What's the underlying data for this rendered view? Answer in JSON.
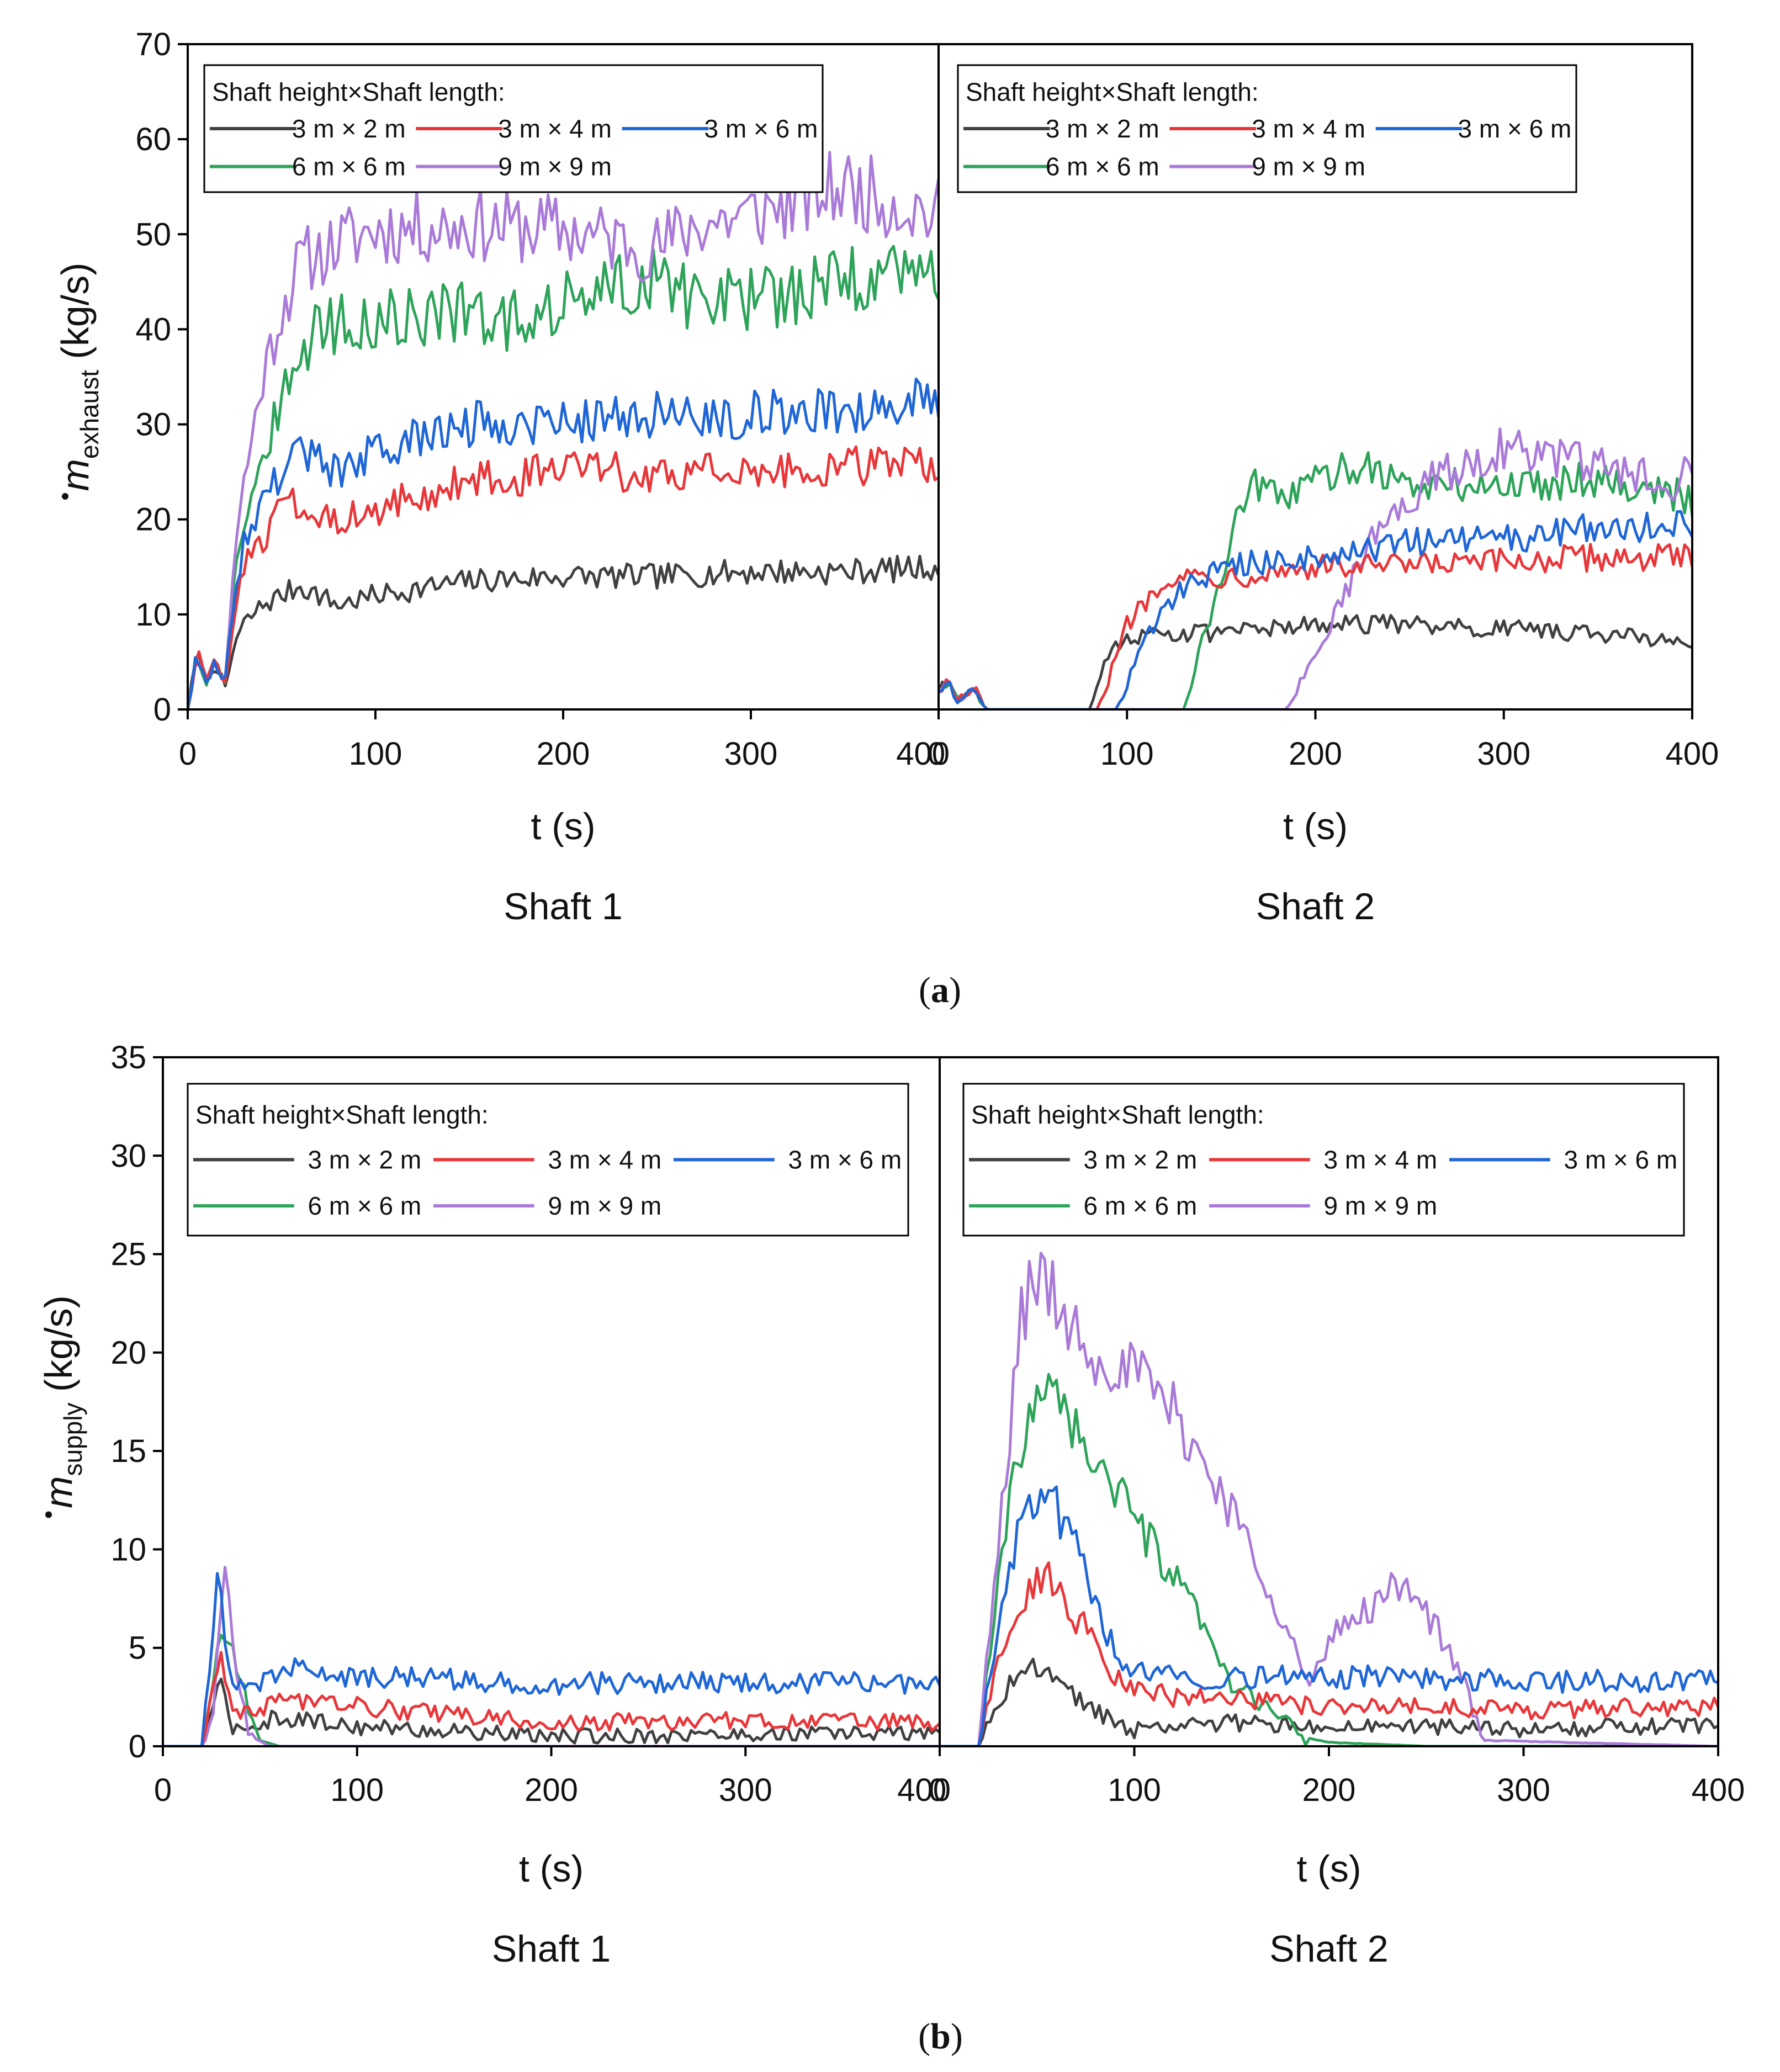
{
  "figure": {
    "colors": {
      "3x2": "#404040",
      "3x4": "#e8373a",
      "3x6": "#1f66d6",
      "6x6": "#2ea35a",
      "9x9": "#a97ad8"
    },
    "legend_title": "Shaft height×Shaft length:",
    "series_names": [
      "3 m × 2 m",
      "3 m × 4 m",
      "3 m × 6 m",
      "6 m × 6 m",
      "9 m × 9 m"
    ]
  },
  "chart_data": [
    {
      "type": "line",
      "caption": {
        "open": "(",
        "letter": "a",
        "close": ")"
      },
      "ylabel": {
        "main": "m",
        "sub": "exhaust",
        "unit": " (kg/s)"
      },
      "ylim": [
        0,
        70
      ],
      "yticks": [
        0,
        10,
        20,
        30,
        40,
        50,
        60,
        70
      ],
      "panels": [
        {
          "subtitle": "Shaft 1",
          "xlabel": "t (s)",
          "xlim": [
            0,
            400
          ],
          "xticks": [
            0,
            100,
            200,
            300,
            400
          ],
          "series": [
            {
              "name": "3 m × 2 m",
              "x": [
                0,
                5,
                10,
                15,
                20,
                25,
                30,
                40,
                50,
                60,
                70,
                80,
                100,
                150,
                200,
                250,
                300,
                350,
                400
              ],
              "y": [
                0,
                6,
                3,
                5,
                2,
                7,
                9,
                11,
                12,
                13,
                12,
                11,
                12,
                13.5,
                14,
                14,
                14.5,
                14.5,
                15
              ]
            },
            {
              "name": "3 m × 4 m",
              "x": [
                0,
                5,
                10,
                15,
                20,
                25,
                30,
                40,
                50,
                60,
                70,
                80,
                100,
                150,
                200,
                250,
                300,
                350,
                400
              ],
              "y": [
                0,
                6,
                3,
                5,
                3,
                10,
                15,
                18,
                21,
                22,
                21,
                20,
                21,
                24,
                25,
                25,
                25,
                25.5,
                26
              ]
            },
            {
              "name": "3 m × 6 m",
              "x": [
                0,
                5,
                10,
                15,
                20,
                25,
                30,
                40,
                50,
                60,
                70,
                80,
                100,
                150,
                200,
                250,
                300,
                350,
                400
              ],
              "y": [
                0,
                6,
                3,
                5,
                3,
                12,
                18,
                22,
                25,
                28,
                26,
                25,
                27,
                30,
                30.5,
                31,
                31,
                31.5,
                33
              ]
            },
            {
              "name": "6 m × 6 m",
              "x": [
                0,
                5,
                10,
                15,
                20,
                25,
                30,
                40,
                50,
                60,
                70,
                80,
                100,
                150,
                160,
                200,
                250,
                270,
                300,
                350,
                400
              ],
              "y": [
                0,
                6,
                3,
                5,
                3,
                15,
                20,
                27,
                32,
                38,
                40,
                40.5,
                41,
                42,
                40,
                43,
                45.5,
                43,
                43,
                45,
                46.5
              ]
            },
            {
              "name": "9 m × 9 m",
              "x": [
                0,
                5,
                10,
                15,
                20,
                25,
                30,
                40,
                50,
                60,
                70,
                80,
                100,
                150,
                200,
                250,
                270,
                300,
                350,
                400
              ],
              "y": [
                0,
                6,
                3,
                5,
                3,
                17,
                24,
                35,
                42,
                47,
                48,
                49,
                50.5,
                51,
                50.5,
                48.5,
                51,
                52,
                55,
                52
              ]
            }
          ]
        },
        {
          "subtitle": "Shaft 2",
          "xlabel": "t (s)",
          "xlim": [
            0,
            400
          ],
          "xticks": [
            0,
            100,
            200,
            300,
            400
          ],
          "series": [
            {
              "name": "3 m × 2 m",
              "x": [
                0,
                5,
                10,
                20,
                25,
                80,
                90,
                100,
                120,
                150,
                200,
                250,
                300,
                350,
                400
              ],
              "y": [
                2,
                3,
                1,
                2,
                0,
                0,
                6,
                7.5,
                8,
                8,
                9,
                9,
                8.5,
                8,
                7
              ]
            },
            {
              "name": "3 m × 4 m",
              "x": [
                0,
                5,
                10,
                20,
                25,
                85,
                100,
                120,
                150,
                200,
                250,
                300,
                350,
                400
              ],
              "y": [
                2,
                3,
                1,
                2,
                0,
                0,
                9,
                14,
                14,
                15,
                15,
                15.5,
                16,
                16
              ]
            },
            {
              "name": "3 m × 6 m",
              "x": [
                0,
                5,
                10,
                20,
                25,
                95,
                110,
                130,
                150,
                200,
                250,
                300,
                350,
                400
              ],
              "y": [
                2,
                3,
                1,
                2,
                0,
                0,
                8,
                13,
                15,
                16,
                17.5,
                18,
                19,
                19.5
              ]
            },
            {
              "name": "6 m × 6 m",
              "x": [
                0,
                5,
                10,
                20,
                25,
                130,
                150,
                165,
                180,
                200,
                225,
                250,
                300,
                350,
                400
              ],
              "y": [
                2,
                3,
                1,
                2,
                0,
                0,
                14,
                24,
                22,
                24,
                26,
                23.5,
                23.5,
                24.5,
                22
              ]
            },
            {
              "name": "9 m × 9 m",
              "x": [
                0,
                5,
                10,
                20,
                25,
                185,
                200,
                215,
                230,
                260,
                300,
                330,
                360,
                390,
                400
              ],
              "y": [
                2,
                3,
                1,
                2,
                0,
                0,
                6,
                12,
                18,
                24,
                27.5,
                26.5,
                25,
                24,
                27
              ]
            }
          ]
        }
      ]
    },
    {
      "type": "line",
      "caption": {
        "open": "(",
        "letter": "b",
        "close": ")"
      },
      "ylabel": {
        "main": "m",
        "sub": "supply",
        "unit": " (kg/s)"
      },
      "ylim": [
        0,
        35
      ],
      "yticks": [
        0,
        5,
        10,
        15,
        20,
        25,
        30,
        35
      ],
      "panels": [
        {
          "subtitle": "Shaft 1",
          "xlabel": "t (s)",
          "xlim": [
            0,
            400
          ],
          "xticks": [
            0,
            100,
            200,
            300,
            400
          ],
          "series": [
            {
              "name": "3 m × 2 m",
              "x": [
                0,
                20,
                25,
                30,
                35,
                45,
                60,
                100,
                200,
                300,
                400
              ],
              "y": [
                0,
                0,
                2,
                3,
                1,
                1,
                1.5,
                1,
                0.5,
                0.6,
                0.7
              ]
            },
            {
              "name": "3 m × 4 m",
              "x": [
                0,
                20,
                25,
                30,
                35,
                45,
                60,
                100,
                200,
                300,
                400
              ],
              "y": [
                0,
                0,
                3,
                5,
                2,
                1.5,
                2.5,
                2,
                1.2,
                1.3,
                1.2
              ]
            },
            {
              "name": "3 m × 6 m",
              "x": [
                0,
                20,
                25,
                28,
                35,
                45,
                60,
                100,
                200,
                300,
                400
              ],
              "y": [
                0,
                0,
                5,
                9,
                3,
                3,
                4,
                3.5,
                3.2,
                3.2,
                3.2
              ]
            },
            {
              "name": "6 m × 6 m",
              "x": [
                0,
                20,
                25,
                30,
                38,
                45,
                50,
                60,
                400
              ],
              "y": [
                0,
                0,
                3,
                6,
                4,
                1.5,
                0.3,
                0,
                0
              ]
            },
            {
              "name": "9 m × 9 m",
              "x": [
                0,
                20,
                26,
                32,
                38,
                45,
                55,
                400
              ],
              "y": [
                0,
                0,
                2,
                9,
                4,
                0.5,
                0,
                0
              ]
            }
          ]
        },
        {
          "subtitle": "Shaft 2",
          "xlabel": "t (s)",
          "xlim": [
            0,
            400
          ],
          "xticks": [
            0,
            100,
            200,
            300,
            400
          ],
          "series": [
            {
              "name": "3 m × 2 m",
              "x": [
                0,
                20,
                25,
                35,
                45,
                55,
                70,
                85,
                100,
                150,
                200,
                250,
                300,
                350,
                400
              ],
              "y": [
                0,
                0,
                1,
                3,
                4,
                3.5,
                2.5,
                1.5,
                0.8,
                1.2,
                1,
                1,
                0.8,
                1,
                1
              ]
            },
            {
              "name": "3 m × 4 m",
              "x": [
                0,
                20,
                25,
                35,
                45,
                55,
                65,
                75,
                85,
                95,
                120,
                150,
                200,
                250,
                300,
                350,
                400
              ],
              "y": [
                0,
                0,
                2,
                6,
                8,
                9,
                7,
                6,
                4,
                3,
                2.5,
                2.5,
                2,
                2,
                1.8,
                2,
                2
              ]
            },
            {
              "name": "3 m × 6 m",
              "x": [
                0,
                20,
                25,
                35,
                45,
                55,
                65,
                75,
                85,
                95,
                120,
                150,
                200,
                250,
                300,
                350,
                400
              ],
              "y": [
                0,
                0,
                3,
                9,
                12,
                13,
                11,
                9,
                6,
                4,
                3.5,
                3.5,
                3.5,
                3.5,
                3.3,
                3.3,
                3.3
              ]
            },
            {
              "name": "6 m × 6 m",
              "x": [
                0,
                20,
                25,
                35,
                45,
                55,
                70,
                90,
                110,
                130,
                150,
                170,
                185,
                200,
                250,
                400
              ],
              "y": [
                0,
                0,
                4,
                12,
                16,
                19.5,
                16,
                13,
                10,
                7,
                3,
                2,
                0.5,
                0.2,
                0,
                0
              ]
            },
            {
              "name": "9 m × 9 m",
              "x": [
                0,
                20,
                25,
                35,
                42,
                50,
                60,
                80,
                100,
                120,
                150,
                170,
                190,
                205,
                220,
                240,
                255,
                270,
                280,
                400
              ],
              "y": [
                0,
                0,
                5,
                15,
                22,
                24,
                22.5,
                20,
                19,
                17,
                12,
                8,
                3,
                6,
                7,
                8.5,
                6,
                3,
                0.3,
                0
              ]
            }
          ]
        }
      ]
    }
  ]
}
